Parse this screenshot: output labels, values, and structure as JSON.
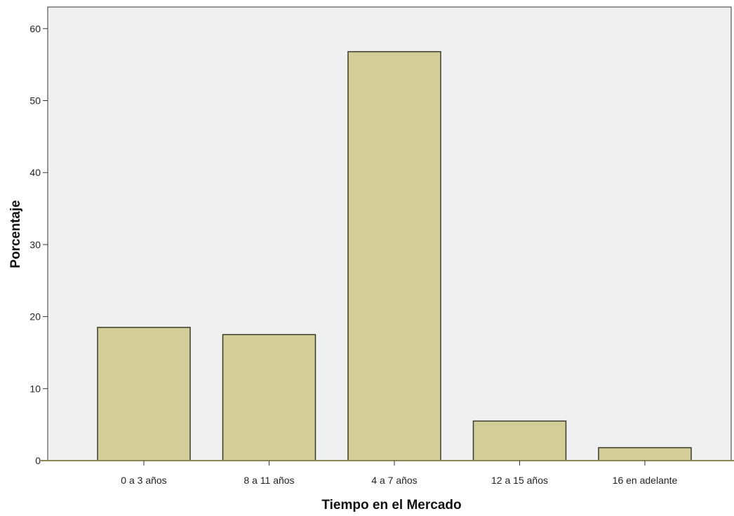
{
  "chart_data": {
    "type": "bar",
    "categories": [
      "0 a 3 años",
      "8 a 11 años",
      "4 a 7 años",
      "12 a 15 años",
      "16 en adelante"
    ],
    "values": [
      18.5,
      17.5,
      56.8,
      5.5,
      1.8
    ],
    "xlabel": "Tiempo en el Mercado",
    "ylabel": "Porcentaje",
    "ylim": [
      0,
      63
    ],
    "yticks": [
      0,
      10,
      20,
      30,
      40,
      50,
      60
    ],
    "grid": false,
    "legend": "none",
    "colors": {
      "bar_fill": "#d3cd97",
      "bar_stroke": "#3a3a2a",
      "plot_background": "#f0f0f0",
      "baseline": "#8a8450",
      "axis": "#333333"
    }
  }
}
